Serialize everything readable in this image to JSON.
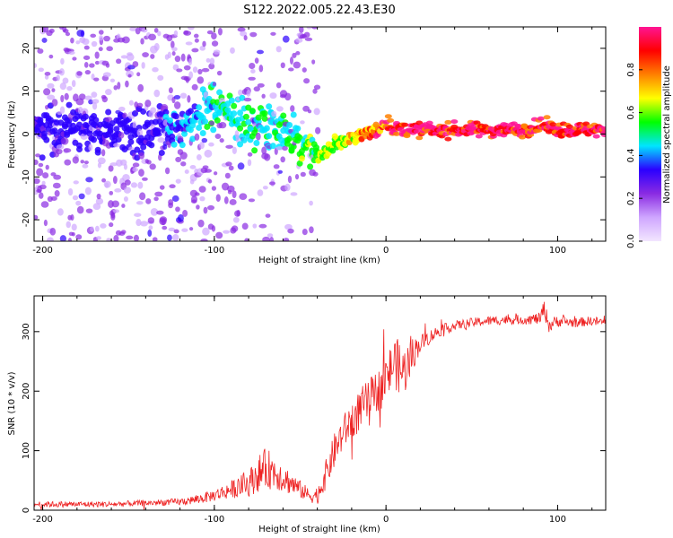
{
  "title": "S122.2022.005.22.43.E30",
  "colors": {
    "snr_line": "#ee2222",
    "axis": "#000000",
    "colormap": [
      "#f2e6ff",
      "#cfa6ff",
      "#8a2be2",
      "#2b00ff",
      "#00e5ff",
      "#00ff00",
      "#ffff00",
      "#ff8000",
      "#ff0000",
      "#ff1493"
    ]
  },
  "chart_data": [
    {
      "type": "heatmap",
      "xlabel": "Height of straight line (km)",
      "ylabel": "Frequency (Hz)",
      "xlim": [
        -205,
        128
      ],
      "ylim": [
        -25,
        25
      ],
      "xticks": [
        -200,
        -100,
        0,
        100
      ],
      "yticks": [
        -20,
        -10,
        0,
        10,
        20
      ],
      "colorbar": {
        "label": "Normalized spectral amplitude",
        "ticks": [
          "0.0",
          "0.2",
          "0.4",
          "0.6",
          "0.8"
        ],
        "tick_values": [
          0.0,
          0.2,
          0.4,
          0.6,
          0.8
        ],
        "range": [
          0,
          1
        ]
      },
      "ridge": {
        "x": [
          -205,
          -180,
          -160,
          -140,
          -120,
          -110,
          -100,
          -90,
          -80,
          -70,
          -60,
          -50,
          -45,
          -40,
          -35,
          -30,
          -25,
          -20,
          -15,
          -10,
          -5,
          0,
          5,
          10,
          20,
          40,
          60,
          80,
          90,
          100,
          110,
          128
        ],
        "y": [
          1,
          1,
          0.5,
          0,
          1,
          4,
          6,
          5,
          2,
          3,
          1,
          -2,
          -4,
          -5,
          -4,
          -2,
          -2,
          -1,
          0,
          0,
          1,
          3,
          1,
          1,
          1,
          1,
          1,
          1,
          2,
          1,
          1,
          1
        ],
        "amplitude": [
          0.3,
          0.3,
          0.3,
          0.3,
          0.35,
          0.4,
          0.45,
          0.45,
          0.45,
          0.45,
          0.45,
          0.5,
          0.55,
          0.55,
          0.6,
          0.6,
          0.65,
          0.7,
          0.75,
          0.8,
          0.85,
          0.85,
          0.95,
          0.95,
          0.95,
          0.95,
          0.95,
          0.95,
          0.9,
          0.95,
          0.95,
          0.95
        ]
      }
    },
    {
      "type": "line",
      "xlabel": "Height of straight line (km)",
      "ylabel": "SNR (10 * v/v)",
      "xlim": [
        -205,
        128
      ],
      "ylim": [
        0,
        360
      ],
      "xticks": [
        -200,
        -100,
        0,
        100
      ],
      "yticks": [
        0,
        100,
        200,
        300
      ],
      "series": [
        {
          "x": [
            -205,
            -180,
            -160,
            -140,
            -120,
            -110,
            -100,
            -90,
            -80,
            -75,
            -70,
            -65,
            -60,
            -55,
            -50,
            -45,
            -40,
            -35,
            -30,
            -25,
            -20,
            -15,
            -10,
            -5,
            0,
            5,
            10,
            15,
            20,
            30,
            40,
            50,
            60,
            70,
            80,
            90,
            92,
            95,
            100,
            110,
            120,
            128
          ],
          "y": [
            10,
            10,
            10,
            12,
            14,
            18,
            25,
            35,
            45,
            60,
            70,
            65,
            55,
            45,
            35,
            25,
            25,
            60,
            100,
            130,
            150,
            170,
            185,
            200,
            220,
            250,
            230,
            260,
            280,
            300,
            310,
            315,
            318,
            320,
            320,
            322,
            340,
            310,
            318,
            315,
            318,
            315
          ],
          "noise": [
            5,
            5,
            5,
            5,
            6,
            8,
            10,
            15,
            22,
            30,
            35,
            30,
            25,
            20,
            15,
            12,
            15,
            25,
            30,
            30,
            30,
            35,
            35,
            35,
            40,
            45,
            45,
            30,
            15,
            10,
            8,
            8,
            8,
            8,
            8,
            10,
            15,
            12,
            10,
            8,
            8,
            8
          ]
        }
      ]
    }
  ]
}
